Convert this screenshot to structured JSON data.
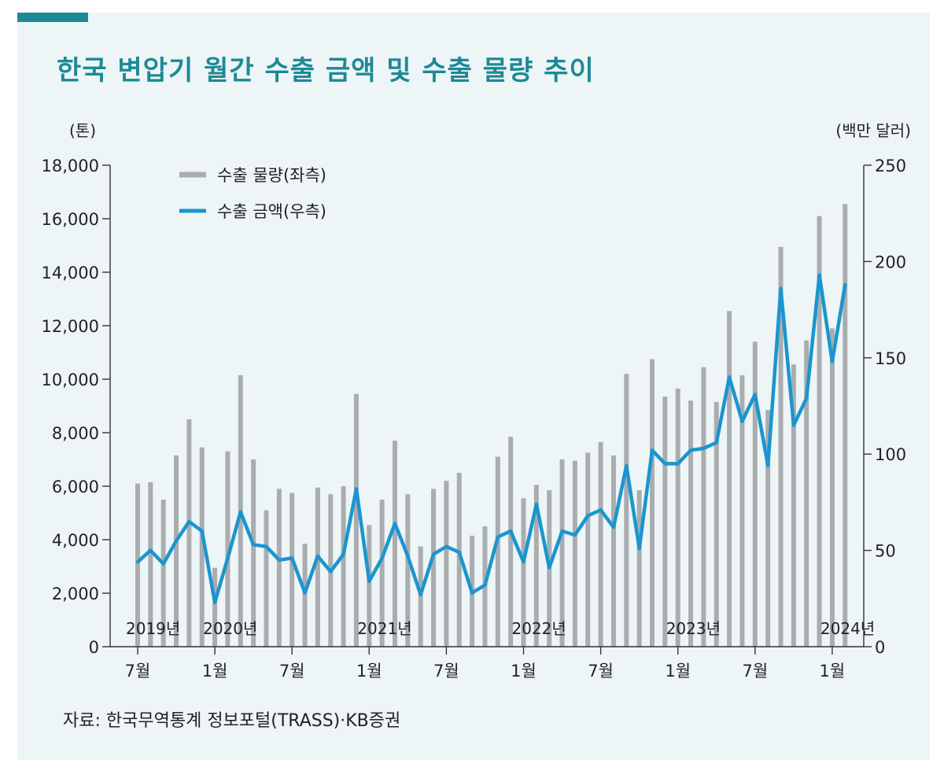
{
  "header": {
    "title": "한국 변압기 월간 수출 금액 및 수출 물량 추이"
  },
  "footer": {
    "source": "자료: 한국무역통계 정보포털(TRASS)·KB증권"
  },
  "colors": {
    "bar": "#a9adb0",
    "line": "#1b95cf",
    "title": "#1c8a96",
    "panel": "#eef5f7"
  },
  "chart_data": {
    "type": "bar+line",
    "title": "한국 변압기 월간 수출 금액 및 수출 물량 추이",
    "left_axis": {
      "unit": "(톤)",
      "range": [
        0,
        18000
      ],
      "ticks": [
        "0",
        "2,000",
        "4,000",
        "6,000",
        "8,000",
        "10,000",
        "12,000",
        "14,000",
        "16,000",
        "18,000"
      ]
    },
    "right_axis": {
      "unit": "(백만 달러)",
      "range": [
        0,
        250
      ],
      "ticks": [
        "0",
        "50",
        "100",
        "150",
        "200",
        "250"
      ]
    },
    "x_ticks": [
      {
        "index": 0,
        "label": "7월"
      },
      {
        "index": 6,
        "label": "1월"
      },
      {
        "index": 12,
        "label": "7월"
      },
      {
        "index": 18,
        "label": "1월"
      },
      {
        "index": 24,
        "label": "7월"
      },
      {
        "index": 30,
        "label": "1월"
      },
      {
        "index": 36,
        "label": "7월"
      },
      {
        "index": 42,
        "label": "1월"
      },
      {
        "index": 48,
        "label": "7월"
      },
      {
        "index": 54,
        "label": "1월"
      }
    ],
    "year_labels": [
      {
        "index": 0,
        "label": "2019년"
      },
      {
        "index": 6,
        "label": "2020년"
      },
      {
        "index": 18,
        "label": "2021년"
      },
      {
        "index": 30,
        "label": "2022년"
      },
      {
        "index": 42,
        "label": "2023년"
      },
      {
        "index": 54,
        "label": "2024년"
      }
    ],
    "legend": {
      "position": "top-left",
      "bar_label": "수출 물량(좌측)",
      "line_label": "수출 금액(우측)"
    },
    "series": [
      {
        "name": "수출 물량(좌측)",
        "kind": "bar",
        "axis": "left",
        "values": [
          6100,
          6150,
          5500,
          7150,
          8500,
          7450,
          2950,
          7300,
          10150,
          7000,
          5100,
          5900,
          5750,
          3850,
          5950,
          5700,
          6000,
          9450,
          4550,
          5500,
          7700,
          5700,
          3750,
          5900,
          6200,
          6500,
          4150,
          4500,
          7100,
          7850,
          5550,
          6050,
          5850,
          7000,
          6950,
          7250,
          7650,
          7150,
          10200,
          5850,
          10750,
          9350,
          9650,
          9200,
          10450,
          9150,
          12550,
          10150,
          11400,
          8850,
          14950,
          10550,
          11450,
          16100,
          11900,
          16550
        ]
      },
      {
        "name": "수출 금액(우측)",
        "kind": "line",
        "axis": "right",
        "values": [
          44,
          50,
          43,
          55,
          65,
          60,
          23,
          46,
          70,
          53,
          52,
          45,
          46,
          28,
          47,
          39,
          48,
          82,
          34,
          46,
          64,
          47,
          27,
          48,
          52,
          49,
          28,
          32,
          57,
          60,
          44,
          74,
          41,
          60,
          58,
          68,
          71,
          62,
          94,
          51,
          102,
          95,
          95,
          102,
          103,
          106,
          140,
          117,
          131,
          94,
          186,
          115,
          129,
          193,
          148,
          188
        ]
      }
    ]
  }
}
